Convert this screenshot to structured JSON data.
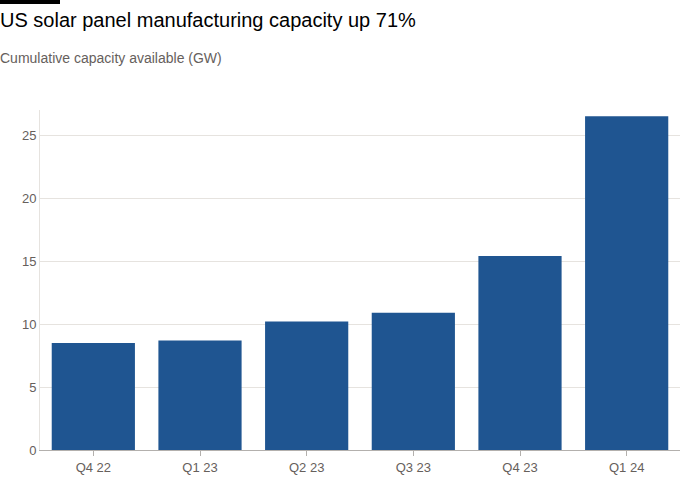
{
  "chart_data": {
    "type": "bar",
    "title": "US solar panel manufacturing capacity up 71%",
    "subtitle": "Cumulative capacity available (GW)",
    "categories": [
      "Q4 22",
      "Q1 23",
      "Q2 23",
      "Q3 23",
      "Q4 23",
      "Q1 24"
    ],
    "values": [
      8.5,
      8.7,
      10.2,
      10.9,
      15.4,
      26.5
    ],
    "color": "#1f5591",
    "ylim": [
      0,
      27
    ],
    "yticks": [
      0,
      5,
      10,
      15,
      20,
      25
    ],
    "grid": true
  }
}
